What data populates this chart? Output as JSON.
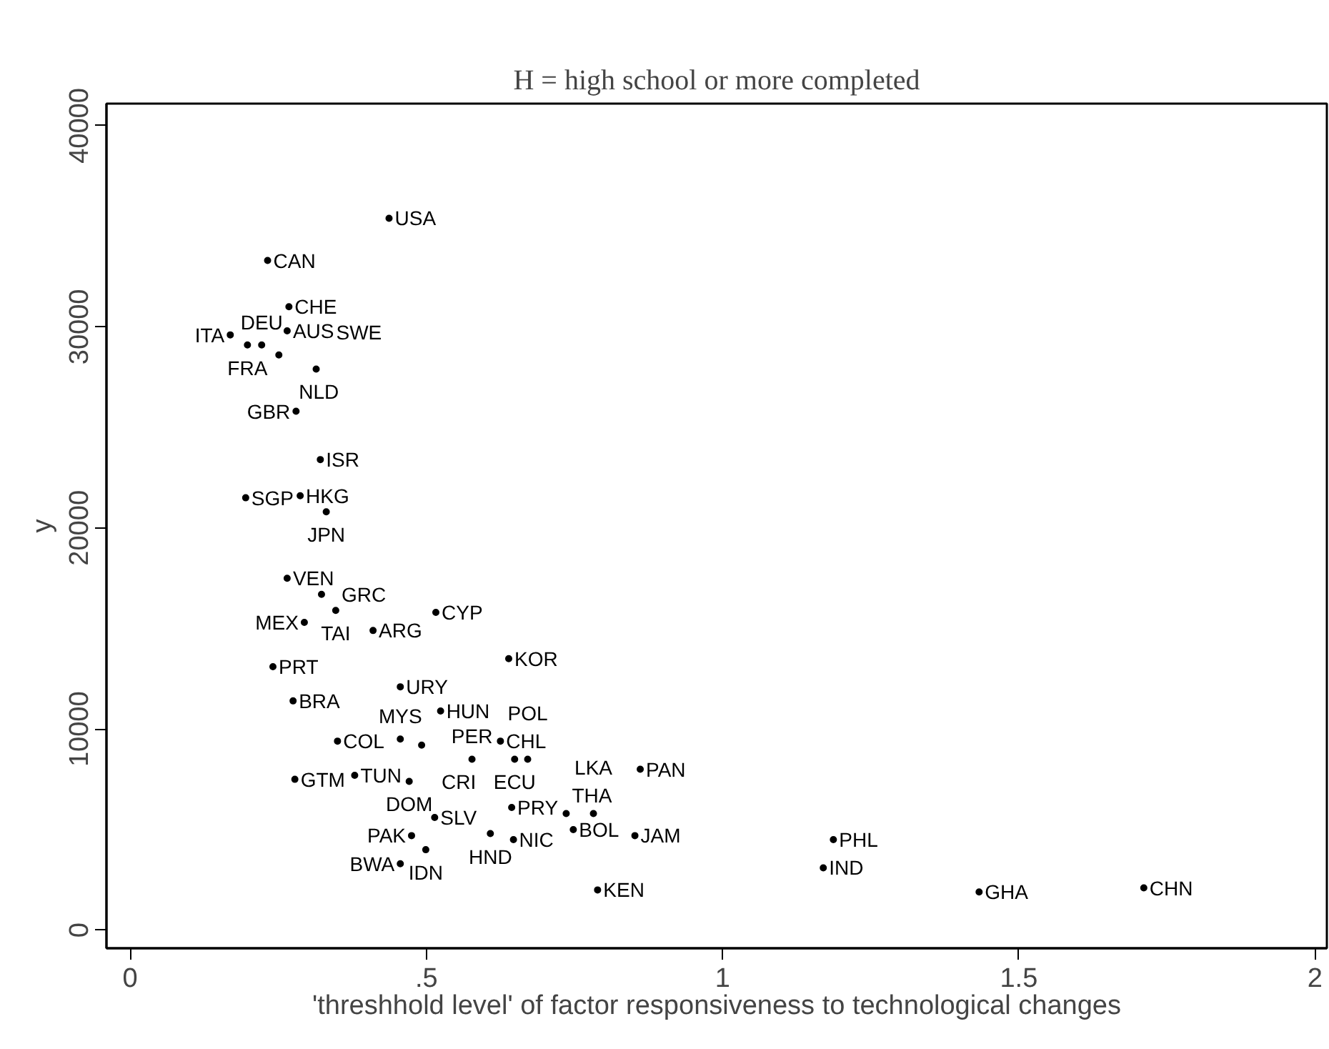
{
  "chart_data": {
    "type": "scatter",
    "title": "H = high school or more completed",
    "xlabel": "'threshhold level' of factor responsiveness to technological changes",
    "ylabel": "y",
    "xlim": [
      -0.04,
      2.02
    ],
    "ylim": [
      -900,
      41100
    ],
    "xticks": [
      0,
      {
        "value": 0.5,
        "label": ".5"
      },
      1,
      {
        "value": 1.5,
        "label": "1.5"
      },
      2
    ],
    "yticks": [
      0,
      10000,
      20000,
      30000,
      40000
    ],
    "grid": false,
    "marker": "circle",
    "series": [
      {
        "color": "#000000",
        "x": [
          0.437,
          0.232,
          0.268,
          0.265,
          0.169,
          0.198,
          0.222,
          0.251,
          0.314,
          0.28,
          0.321,
          0.195,
          0.287,
          0.331,
          0.265,
          0.323,
          0.347,
          0.294,
          0.41,
          0.516,
          0.639,
          0.241,
          0.275,
          0.456,
          0.524,
          0.35,
          0.456,
          0.492,
          0.625,
          0.577,
          0.649,
          0.671,
          0.861,
          0.278,
          0.379,
          0.471,
          0.644,
          0.736,
          0.782,
          0.748,
          0.852,
          0.514,
          0.475,
          0.608,
          0.647,
          0.499,
          0.456,
          0.789,
          1.187,
          1.17,
          1.433,
          1.711
        ],
        "values": [
          35400,
          33300,
          31000,
          29800,
          29600,
          29100,
          29100,
          28600,
          27900,
          25800,
          23400,
          21500,
          21600,
          20800,
          17500,
          16700,
          15900,
          15300,
          14900,
          15800,
          13500,
          13100,
          11400,
          12100,
          10900,
          9400,
          9500,
          9200,
          9400,
          8500,
          8500,
          8500,
          8000,
          7500,
          7700,
          7400,
          6100,
          5800,
          5800,
          5000,
          4700,
          5600,
          4700,
          4800,
          4500,
          4000,
          3300,
          2000,
          4500,
          3100,
          1900,
          2100
        ],
        "value_labels": [
          "USA",
          "CAN",
          "CHE",
          "AUS",
          "ITA",
          "FRA",
          "DEU",
          "NLD",
          "SWE",
          "GBR",
          "ISR",
          "SGP",
          "HKG",
          "JPN",
          "VEN",
          "GRC",
          "TAI",
          "MEX",
          "ARG",
          "CYP",
          "KOR",
          "PRT",
          "BRA",
          "URY",
          "HUN",
          "COL",
          "MYS",
          "CRI",
          "CHL",
          "PER",
          "ECU",
          "POL",
          "PAN",
          "GTM",
          "TUN",
          "DOM",
          "PRY",
          "THA",
          "LKA",
          "BOL",
          "JAM",
          "SLV",
          "PAK",
          "HND",
          "NIC",
          "IDN",
          "BWA",
          "KEN",
          "PHL",
          "IND",
          "GHA",
          "CHN"
        ]
      }
    ]
  }
}
